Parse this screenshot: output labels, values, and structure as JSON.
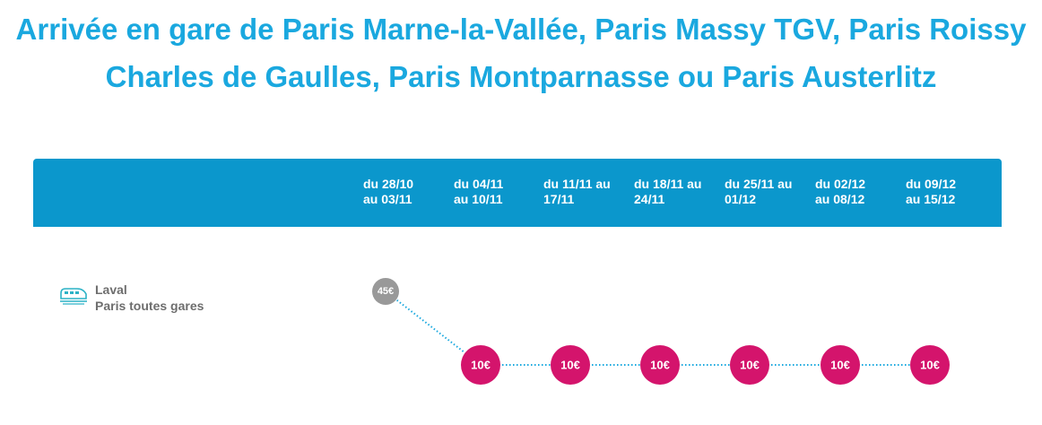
{
  "title": "Arrivée en gare de Paris Marne-la-Vallée, Paris Massy TGV, Paris Roissy Charles de Gaulles, Paris Montparnasse ou Paris Austerlitz",
  "periods": [
    {
      "line1": "du 28/10",
      "line2": "au 03/11"
    },
    {
      "line1": "du 04/11",
      "line2": "au 10/11"
    },
    {
      "line1": "du 11/11 au",
      "line2": "17/11"
    },
    {
      "line1": "du 18/11 au",
      "line2": "24/11"
    },
    {
      "line1": "du 25/11 au",
      "line2": "01/12"
    },
    {
      "line1": "du 02/12",
      "line2": "au 08/12"
    },
    {
      "line1": "du 09/12",
      "line2": "au 15/12"
    }
  ],
  "route": {
    "icon": "train-icon",
    "origin": "Laval",
    "destination": "Paris toutes gares"
  },
  "colors": {
    "title": "#1aa8df",
    "header": "#0b97cc",
    "regular_price": "#999999",
    "low_price": "#d4146c",
    "connector": "#1aa8df"
  },
  "chart_data": {
    "type": "line",
    "categories": [
      "du 28/10 au 03/11",
      "du 04/11 au 10/11",
      "du 11/11 au 17/11",
      "du 18/11 au 24/11",
      "du 25/11 au 01/12",
      "du 02/12 au 08/12",
      "du 09/12 au 15/12"
    ],
    "series": [
      {
        "values": [
          45,
          10,
          10,
          10,
          10,
          10,
          10
        ],
        "labels": [
          "45€",
          "10€",
          "10€",
          "10€",
          "10€",
          "10€",
          "10€"
        ]
      }
    ]
  }
}
